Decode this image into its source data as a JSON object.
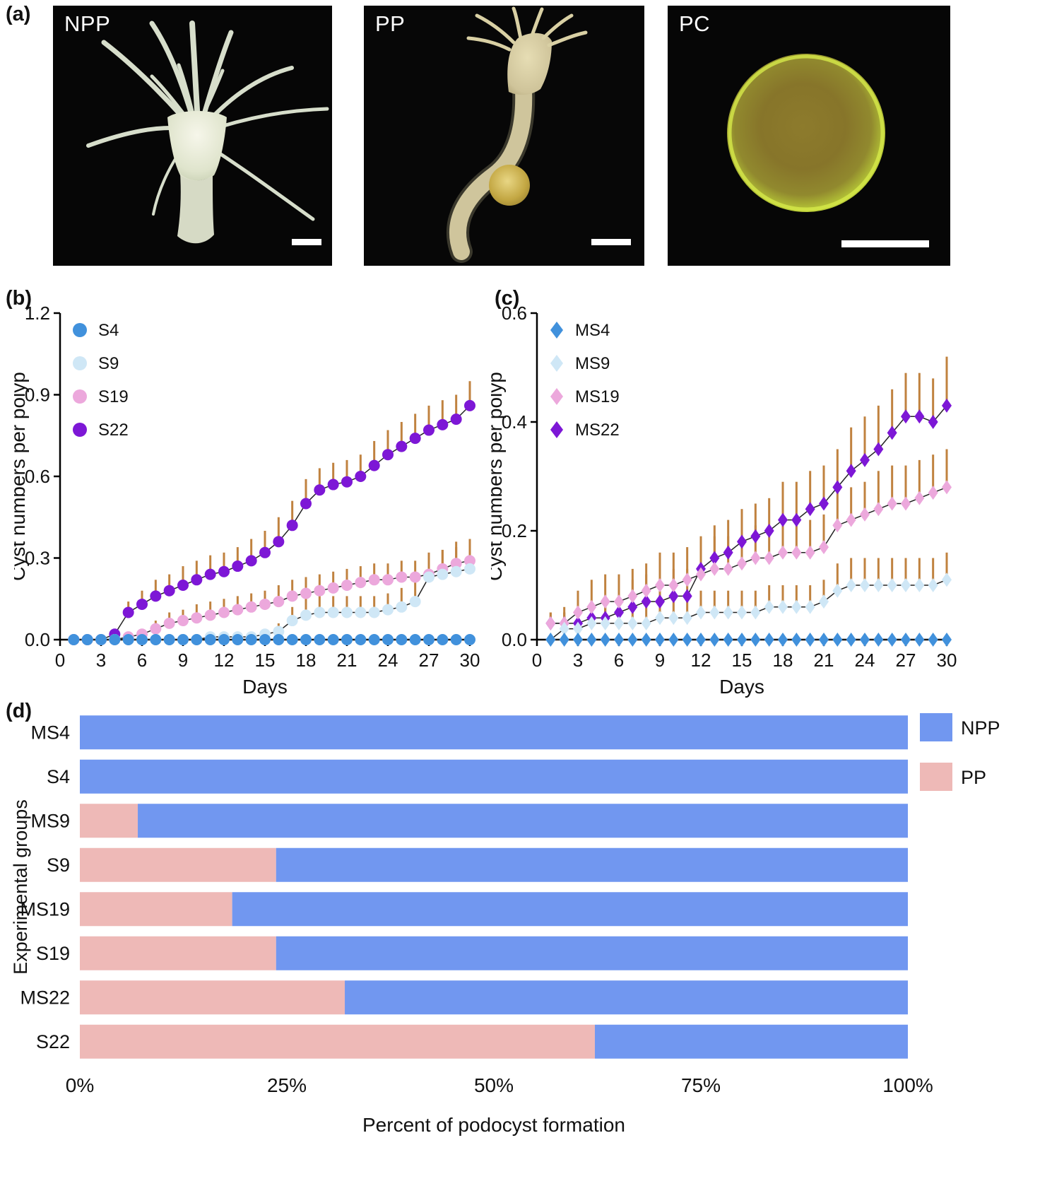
{
  "panel_labels": {
    "a": "(a)",
    "b": "(b)",
    "c": "(c)",
    "d": "(d)"
  },
  "panel_a": {
    "images": [
      {
        "label": "NPP"
      },
      {
        "label": "PP"
      },
      {
        "label": "PC"
      }
    ]
  },
  "colors": {
    "s4_blue": "#4191dc",
    "s9_lightblue": "#cfe7f6",
    "s19_pink": "#eca8dc",
    "s22_purple": "#7d17d6",
    "error_bar": "#c0823f",
    "npp_bar": "#7197f0",
    "pp_bar": "#eeb9b7"
  },
  "chart_data": [
    {
      "id": "panel-b",
      "type": "scatter",
      "marker": "circle",
      "xlabel": "Days",
      "ylabel": "Cyst numbers per polyp",
      "xlim": [
        0,
        30
      ],
      "ylim": [
        0,
        1.2
      ],
      "x_ticks": [
        0,
        3,
        6,
        9,
        12,
        15,
        18,
        21,
        24,
        27,
        30
      ],
      "y_ticks": [
        0,
        0.3,
        0.6,
        0.9,
        1.2
      ],
      "y_tick_labels": [
        "0.0",
        "0.3",
        "0.6",
        "0.9",
        "1.2"
      ],
      "x": [
        1,
        2,
        3,
        4,
        5,
        6,
        7,
        8,
        9,
        10,
        11,
        12,
        13,
        14,
        15,
        16,
        17,
        18,
        19,
        20,
        21,
        22,
        23,
        24,
        25,
        26,
        27,
        28,
        29,
        30
      ],
      "line_color": "#222222",
      "error_color": "#c0823f",
      "legend_position": "top-left",
      "series": [
        {
          "name": "S4",
          "color": "#4191dc",
          "values": [
            0,
            0,
            0,
            0,
            0,
            0,
            0,
            0,
            0,
            0,
            0,
            0,
            0,
            0,
            0,
            0,
            0,
            0,
            0,
            0,
            0,
            0,
            0,
            0,
            0,
            0,
            0,
            0,
            0,
            0
          ],
          "errors": [
            0,
            0,
            0,
            0,
            0,
            0,
            0,
            0,
            0,
            0,
            0,
            0,
            0,
            0,
            0,
            0,
            0,
            0,
            0,
            0,
            0,
            0,
            0,
            0,
            0,
            0,
            0,
            0,
            0,
            0
          ]
        },
        {
          "name": "S9",
          "color": "#cfe7f6",
          "values": [
            0,
            0,
            0,
            0,
            0,
            0,
            0,
            0,
            0,
            0,
            0.01,
            0.01,
            0.01,
            0.01,
            0.02,
            0.03,
            0.07,
            0.09,
            0.1,
            0.1,
            0.1,
            0.1,
            0.1,
            0.11,
            0.12,
            0.14,
            0.23,
            0.24,
            0.25,
            0.26
          ],
          "errors": [
            0,
            0,
            0,
            0,
            0,
            0,
            0,
            0,
            0,
            0,
            0,
            0,
            0,
            0,
            0.02,
            0.03,
            0.05,
            0.06,
            0.06,
            0.06,
            0.06,
            0.06,
            0.06,
            0.06,
            0.07,
            0.08,
            0.09,
            0.09,
            0.09,
            0.09
          ]
        },
        {
          "name": "S19",
          "color": "#eca8dc",
          "values": [
            0,
            0,
            0,
            0,
            0.01,
            0.02,
            0.04,
            0.06,
            0.07,
            0.08,
            0.09,
            0.1,
            0.11,
            0.12,
            0.13,
            0.14,
            0.16,
            0.17,
            0.18,
            0.19,
            0.2,
            0.21,
            0.22,
            0.22,
            0.23,
            0.23,
            0.24,
            0.26,
            0.28,
            0.29
          ],
          "errors": [
            0,
            0,
            0,
            0,
            0.01,
            0.02,
            0.03,
            0.04,
            0.04,
            0.05,
            0.05,
            0.05,
            0.05,
            0.05,
            0.05,
            0.06,
            0.06,
            0.06,
            0.06,
            0.06,
            0.06,
            0.06,
            0.06,
            0.06,
            0.06,
            0.06,
            0.07,
            0.07,
            0.08,
            0.08
          ]
        },
        {
          "name": "S22",
          "color": "#7d17d6",
          "values": [
            0,
            0,
            0,
            0.02,
            0.1,
            0.13,
            0.16,
            0.18,
            0.2,
            0.22,
            0.24,
            0.25,
            0.27,
            0.29,
            0.32,
            0.36,
            0.42,
            0.5,
            0.55,
            0.57,
            0.58,
            0.6,
            0.64,
            0.68,
            0.71,
            0.74,
            0.77,
            0.79,
            0.81,
            0.86
          ],
          "errors": [
            0,
            0,
            0,
            0.01,
            0.04,
            0.05,
            0.06,
            0.06,
            0.07,
            0.07,
            0.07,
            0.07,
            0.07,
            0.08,
            0.08,
            0.09,
            0.09,
            0.09,
            0.08,
            0.08,
            0.08,
            0.08,
            0.09,
            0.09,
            0.09,
            0.09,
            0.09,
            0.09,
            0.09,
            0.09
          ]
        }
      ]
    },
    {
      "id": "panel-c",
      "type": "scatter",
      "marker": "diamond",
      "xlabel": "Days",
      "ylabel": "Cyst numbers per polyp",
      "xlim": [
        0,
        30
      ],
      "ylim": [
        0,
        0.6
      ],
      "x_ticks": [
        0,
        3,
        6,
        9,
        12,
        15,
        18,
        21,
        24,
        27,
        30
      ],
      "y_ticks": [
        0,
        0.2,
        0.4,
        0.6
      ],
      "y_tick_labels": [
        "0.0",
        "0.2",
        "0.4",
        "0.6"
      ],
      "x": [
        1,
        2,
        3,
        4,
        5,
        6,
        7,
        8,
        9,
        10,
        11,
        12,
        13,
        14,
        15,
        16,
        17,
        18,
        19,
        20,
        21,
        22,
        23,
        24,
        25,
        26,
        27,
        28,
        29,
        30
      ],
      "line_color": "#222222",
      "error_color": "#c0823f",
      "legend_position": "top-left",
      "series": [
        {
          "name": "MS4",
          "color": "#4191dc",
          "values": [
            0,
            0,
            0,
            0,
            0,
            0,
            0,
            0,
            0,
            0,
            0,
            0,
            0,
            0,
            0,
            0,
            0,
            0,
            0,
            0,
            0,
            0,
            0,
            0,
            0,
            0,
            0,
            0,
            0,
            0
          ],
          "errors": [
            0,
            0,
            0,
            0,
            0,
            0,
            0,
            0,
            0,
            0,
            0,
            0,
            0,
            0,
            0,
            0,
            0,
            0,
            0,
            0,
            0,
            0,
            0,
            0,
            0,
            0,
            0,
            0,
            0,
            0
          ]
        },
        {
          "name": "MS9",
          "color": "#cfe7f6",
          "values": [
            0,
            0.02,
            0.02,
            0.03,
            0.03,
            0.03,
            0.03,
            0.03,
            0.04,
            0.04,
            0.04,
            0.05,
            0.05,
            0.05,
            0.05,
            0.05,
            0.06,
            0.06,
            0.06,
            0.06,
            0.07,
            0.09,
            0.1,
            0.1,
            0.1,
            0.1,
            0.1,
            0.1,
            0.1,
            0.11
          ],
          "errors": [
            0,
            0.03,
            0.03,
            0.03,
            0.03,
            0.03,
            0.03,
            0.03,
            0.04,
            0.04,
            0.04,
            0.04,
            0.04,
            0.04,
            0.04,
            0.04,
            0.04,
            0.04,
            0.04,
            0.04,
            0.04,
            0.05,
            0.05,
            0.05,
            0.05,
            0.05,
            0.05,
            0.05,
            0.05,
            0.05
          ]
        },
        {
          "name": "MS19",
          "color": "#eca8dc",
          "values": [
            0.03,
            0.03,
            0.05,
            0.06,
            0.07,
            0.07,
            0.08,
            0.09,
            0.1,
            0.1,
            0.11,
            0.12,
            0.13,
            0.13,
            0.14,
            0.15,
            0.15,
            0.16,
            0.16,
            0.16,
            0.17,
            0.21,
            0.22,
            0.23,
            0.24,
            0.25,
            0.25,
            0.26,
            0.27,
            0.28
          ],
          "errors": [
            0.02,
            0.03,
            0.04,
            0.05,
            0.05,
            0.05,
            0.05,
            0.05,
            0.06,
            0.06,
            0.06,
            0.06,
            0.06,
            0.06,
            0.06,
            0.06,
            0.06,
            0.06,
            0.06,
            0.06,
            0.06,
            0.06,
            0.06,
            0.06,
            0.07,
            0.07,
            0.07,
            0.07,
            0.07,
            0.07
          ]
        },
        {
          "name": "MS22",
          "color": "#7d17d6",
          "values": [
            0.03,
            0.03,
            0.03,
            0.04,
            0.04,
            0.05,
            0.06,
            0.07,
            0.07,
            0.08,
            0.08,
            0.13,
            0.15,
            0.16,
            0.18,
            0.19,
            0.2,
            0.22,
            0.22,
            0.24,
            0.25,
            0.28,
            0.31,
            0.33,
            0.35,
            0.38,
            0.41,
            0.41,
            0.4,
            0.43
          ],
          "errors": [
            0.02,
            0.02,
            0.03,
            0.03,
            0.04,
            0.04,
            0.05,
            0.05,
            0.05,
            0.05,
            0.05,
            0.06,
            0.06,
            0.06,
            0.06,
            0.06,
            0.06,
            0.07,
            0.07,
            0.07,
            0.07,
            0.07,
            0.08,
            0.08,
            0.08,
            0.08,
            0.08,
            0.08,
            0.08,
            0.09
          ]
        }
      ]
    },
    {
      "id": "panel-d",
      "type": "bar",
      "orientation": "horizontal-stacked",
      "xlabel": "Percent of podocyst formation",
      "ylabel": "Experimental groups",
      "xlim": [
        0,
        100
      ],
      "x_ticks": [
        0,
        25,
        50,
        75,
        100
      ],
      "x_tick_labels": [
        "0%",
        "25%",
        "50%",
        "75%",
        "100%"
      ],
      "categories": [
        "MS4",
        "S4",
        "MS9",
        "S9",
        "MS19",
        "S19",
        "MS22",
        "S22"
      ],
      "series": [
        {
          "name": "PP",
          "color": "#eeb9b7",
          "values": [
            0,
            0,
            7,
            23.7,
            18.4,
            23.7,
            32,
            62.2
          ]
        },
        {
          "name": "NPP",
          "color": "#7197f0",
          "values": [
            100,
            100,
            93,
            76.3,
            81.6,
            76.3,
            68,
            37.8
          ]
        }
      ],
      "legend": [
        "NPP",
        "PP"
      ]
    }
  ]
}
